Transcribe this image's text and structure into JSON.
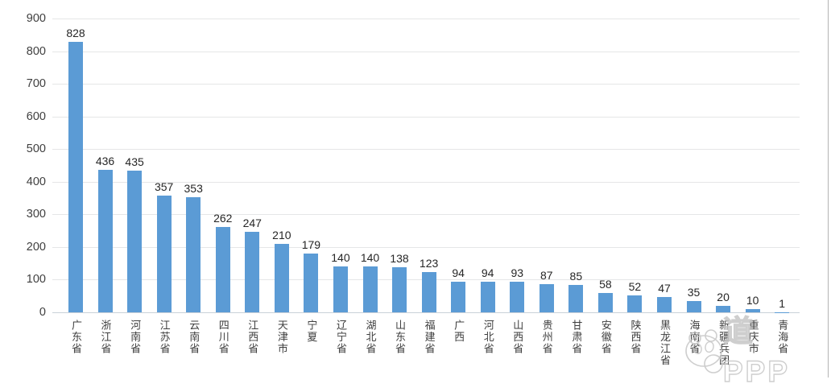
{
  "chart_data": {
    "type": "bar",
    "title": "",
    "xlabel": "",
    "ylabel": "",
    "categories": [
      "广东省",
      "浙江省",
      "河南省",
      "江苏省",
      "云南省",
      "四川省",
      "江西省",
      "天津市",
      "宁夏",
      "辽宁省",
      "湖北省",
      "山东省",
      "福建省",
      "广西",
      "河北省",
      "山西省",
      "贵州省",
      "甘肃省",
      "安徽省",
      "陕西省",
      "黑龙江省",
      "海南省",
      "新疆兵团",
      "重庆市",
      "青海省"
    ],
    "values": [
      828,
      436,
      435,
      357,
      353,
      262,
      247,
      210,
      179,
      140,
      140,
      138,
      123,
      94,
      94,
      93,
      87,
      85,
      58,
      52,
      47,
      35,
      20,
      10,
      1
    ],
    "ylim": [
      0,
      900
    ],
    "yticks": [
      0,
      100,
      200,
      300,
      400,
      500,
      600,
      700,
      800,
      900
    ],
    "grid": true,
    "legend_position": "none",
    "data_labels": true,
    "bar_color": "#5B9BD5"
  },
  "watermark": {
    "icon": "panda-logo-icon",
    "text": "道PPP"
  },
  "colors": {
    "bar": "#5B9BD5",
    "gridline": "#E5E6E7",
    "axis_line": "#C9D1D9",
    "label_text": "#3F3F3F",
    "value_text": "#262626",
    "watermark": "#C6C6C6"
  }
}
